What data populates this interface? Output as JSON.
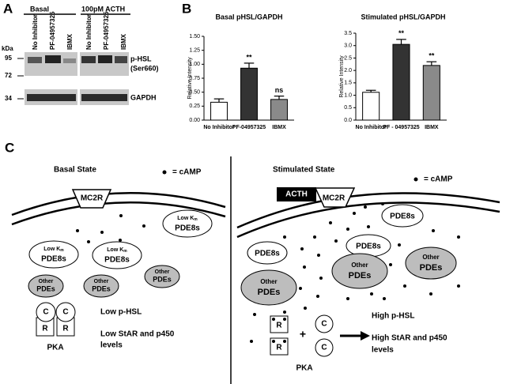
{
  "panels": {
    "a": "A",
    "b": "B",
    "c": "C"
  },
  "blot": {
    "groups": [
      "Basal",
      "100pM ACTH"
    ],
    "lanes": [
      "No Inhibitor",
      "PF-04957325",
      "IBMX",
      "No Inhibitor",
      "PF-04957325",
      "IBMX"
    ],
    "kda_label": "kDa",
    "markers": [
      95,
      72,
      34
    ],
    "bands": [
      "p-HSL",
      "(Ser660)",
      "GAPDH"
    ]
  },
  "chart_data": [
    {
      "type": "bar",
      "title": "Basal pHSL/GAPDH",
      "y_label": "Relative Intensity",
      "categories": [
        "No Inhibitor",
        "PF-04957325",
        "IBMX"
      ],
      "values": [
        0.32,
        0.93,
        0.37
      ],
      "errors": [
        0.06,
        0.09,
        0.06
      ],
      "colors": [
        "#ffffff",
        "#333333",
        "#8a8a8a"
      ],
      "annotations": [
        null,
        "**",
        "ns"
      ],
      "ylim": [
        0,
        1.5
      ],
      "yticks": [
        {
          "value": 0,
          "label": "0.00"
        },
        {
          "value": 0.25,
          "label": "0.25"
        },
        {
          "value": 0.5,
          "label": "0.50"
        },
        {
          "value": 0.75,
          "label": "0.75"
        },
        {
          "value": 1,
          "label": "1.00"
        },
        {
          "value": 1.25,
          "label": "1.25"
        },
        {
          "value": 1.5,
          "label": "1.50"
        }
      ]
    },
    {
      "type": "bar",
      "title": "Stimulated pHSL/GAPDH",
      "y_label": "Relative Intensity",
      "categories": [
        "No Inhibitor",
        "PF - 04957325",
        "IBMX"
      ],
      "values": [
        1.12,
        3.05,
        2.2
      ],
      "errors": [
        0.08,
        0.2,
        0.15
      ],
      "colors": [
        "#ffffff",
        "#333333",
        "#8a8a8a"
      ],
      "annotations": [
        null,
        "**",
        "**"
      ],
      "ylim": [
        0,
        3.5
      ],
      "yticks": [
        {
          "value": 0,
          "label": "0.0"
        },
        {
          "value": 0.5,
          "label": "0.5"
        },
        {
          "value": 1,
          "label": "1.0"
        },
        {
          "value": 1.5,
          "label": "1.5"
        },
        {
          "value": 2,
          "label": "2.0"
        },
        {
          "value": 2.5,
          "label": "2.5"
        },
        {
          "value": 3,
          "label": "3.0"
        },
        {
          "value": 3.5,
          "label": "3.5"
        }
      ]
    }
  ],
  "diagram": {
    "basal": {
      "title": "Basal State",
      "camp_legend": "= cAMP",
      "receptor": "MC2R",
      "pde8": [
        {
          "prefix": "Low K",
          "sub": "m",
          "name": "PDE8s"
        },
        {
          "prefix": "Low K",
          "sub": "m",
          "name": "PDE8s"
        },
        {
          "prefix": "Low K",
          "sub": "m",
          "name": "PDE8s"
        }
      ],
      "other_pdes": [
        {
          "line1": "Other",
          "line2": "PDEs"
        },
        {
          "line1": "Other",
          "line2": "PDEs"
        },
        {
          "line1": "Other",
          "line2": "PDEs"
        }
      ],
      "pka": {
        "c": [
          "C",
          "C"
        ],
        "r": [
          "R",
          "R"
        ],
        "label": "PKA"
      },
      "outcome": [
        "Low p-HSL",
        "Low StAR and p450",
        "levels"
      ]
    },
    "stimulated": {
      "title": "Stimulated State",
      "camp_legend": "= cAMP",
      "ligand": "ACTH",
      "receptor": "MC2R",
      "pde8": [
        "PDE8s",
        "PDE8s",
        "PDE8s"
      ],
      "other_pdes": [
        {
          "line1": "Other",
          "line2": "PDEs"
        },
        {
          "line1": "Other",
          "line2": "PDEs"
        },
        {
          "line1": "Other",
          "line2": "PDEs"
        }
      ],
      "pka": {
        "r": [
          "R",
          "R"
        ],
        "plus": "+",
        "c": [
          "C",
          "C"
        ],
        "label": "PKA"
      },
      "outcome": [
        "High p-HSL",
        "High StAR and p450",
        "levels"
      ]
    }
  }
}
